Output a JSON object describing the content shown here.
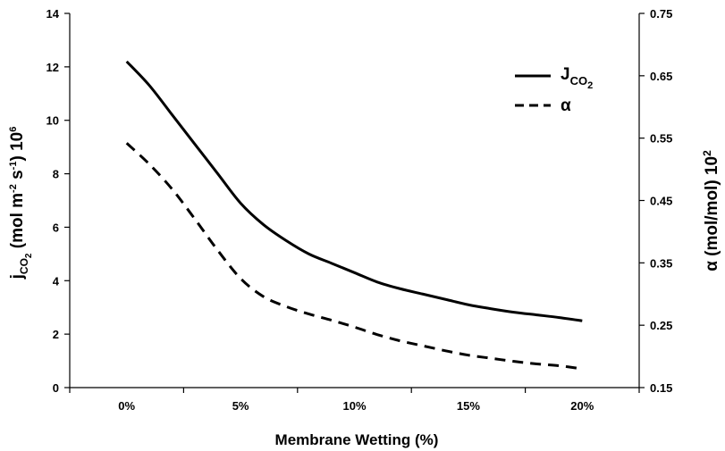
{
  "chart_data": {
    "type": "line",
    "xlabel": "Membrane Wetting (%)",
    "ylabel": {
      "main": "j",
      "sub": "CO",
      "subsub": "2",
      "mid": " (mol m",
      "sup1": "-2",
      "mid2": " s",
      "sup2": "-1",
      "end": ") 10",
      "sup3": "6"
    },
    "y2label": {
      "main": "α (mol/mol) 10",
      "sup": "2"
    },
    "x_ticks": [
      "0%",
      "5%",
      "10%",
      "15%",
      "20%"
    ],
    "x_values": [
      0,
      5,
      10,
      15,
      20
    ],
    "xlim": [
      -2.5,
      22.5
    ],
    "ylim": [
      0,
      14
    ],
    "y_ticks": [
      "0",
      "2",
      "4",
      "6",
      "8",
      "10",
      "12",
      "14"
    ],
    "y2lim": [
      0.15,
      0.75
    ],
    "y2_ticks": [
      "0.15",
      "0.25",
      "0.35",
      "0.45",
      "0.55",
      "0.65",
      "0.75"
    ],
    "grid": false,
    "legend_position": "top-right",
    "series": [
      {
        "name": {
          "main": "J",
          "sub": "CO",
          "subsub": "2"
        },
        "axis": "left",
        "style": "solid",
        "color": "#000000",
        "x": [
          0,
          1,
          2,
          3,
          4,
          5,
          6,
          7,
          8,
          9,
          10,
          11,
          12,
          13,
          14,
          15,
          16,
          17,
          18,
          19,
          20
        ],
        "y": [
          12.2,
          11.3,
          10.2,
          9.1,
          8.0,
          6.9,
          6.1,
          5.5,
          5.0,
          4.65,
          4.3,
          3.95,
          3.7,
          3.5,
          3.3,
          3.1,
          2.95,
          2.82,
          2.72,
          2.62,
          2.5
        ]
      },
      {
        "name": "α",
        "axis": "right",
        "style": "dashed",
        "color": "#000000",
        "x": [
          0,
          1,
          2,
          3,
          4,
          5,
          6,
          7,
          8,
          9,
          10,
          11,
          12,
          13,
          14,
          15,
          16,
          17,
          18,
          19,
          20
        ],
        "y": [
          0.542,
          0.508,
          0.468,
          0.42,
          0.37,
          0.325,
          0.296,
          0.28,
          0.268,
          0.258,
          0.247,
          0.235,
          0.225,
          0.217,
          0.209,
          0.202,
          0.197,
          0.192,
          0.188,
          0.185,
          0.18
        ]
      }
    ]
  }
}
